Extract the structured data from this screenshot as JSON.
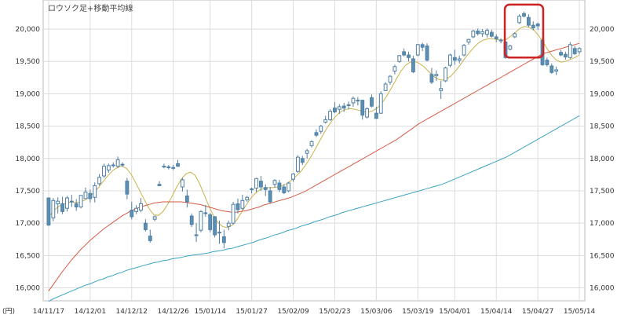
{
  "chart_data": {
    "type": "candlestick",
    "title": "ロウソク足+移動平均線",
    "unit_label": "(円)",
    "ylim": [
      15800,
      20450
    ],
    "y_ticks": [
      16000,
      16500,
      17000,
      17500,
      18000,
      18500,
      19000,
      19500,
      20000
    ],
    "y_tick_labels": [
      "16,000",
      "16,500",
      "17,000",
      "17,500",
      "18,000",
      "18,500",
      "19,000",
      "19,500",
      "20,000"
    ],
    "x_tick_labels": [
      "14/11/17",
      "14/12/01",
      "14/12/12",
      "14/12/26",
      "15/01/14",
      "15/01/27",
      "15/02/09",
      "15/02/23",
      "15/03/06",
      "15/03/19",
      "15/04/01",
      "15/04/14",
      "15/04/27",
      "15/05/14"
    ],
    "grid": true,
    "colors": {
      "up_candle": "#ffffff",
      "down_candle": "#5b8fb3",
      "candle_outline": "#4f7fa3",
      "ma_short": "#c9b24a",
      "ma_medium": "#d45a45",
      "ma_long": "#3aa3c2",
      "highlight_box": "#cc2222",
      "grid": "#dcdcdc"
    },
    "series": [
      {
        "name": "candles",
        "values": [
          [
            17390,
            17390,
            16960,
            16970
          ],
          [
            17080,
            17390,
            17030,
            17350
          ],
          [
            17300,
            17400,
            17150,
            17340
          ],
          [
            17300,
            17410,
            17140,
            17180
          ],
          [
            17230,
            17420,
            17180,
            17390
          ],
          [
            17330,
            17440,
            17250,
            17340
          ],
          [
            17300,
            17370,
            17190,
            17250
          ],
          [
            17250,
            17430,
            17230,
            17430
          ],
          [
            17380,
            17550,
            17380,
            17480
          ],
          [
            17460,
            17520,
            17320,
            17380
          ],
          [
            17400,
            17630,
            17320,
            17580
          ],
          [
            17610,
            17760,
            17580,
            17710
          ],
          [
            17730,
            17920,
            17700,
            17880
          ],
          [
            17820,
            17920,
            17780,
            17890
          ],
          [
            17900,
            17940,
            17860,
            17890
          ],
          [
            17880,
            18030,
            17850,
            17980
          ],
          [
            17910,
            17940,
            17870,
            17900
          ],
          [
            17650,
            17700,
            17370,
            17450
          ],
          [
            17200,
            17330,
            17060,
            17100
          ],
          [
            17180,
            17280,
            17140,
            17230
          ],
          [
            17200,
            17390,
            17170,
            17300
          ],
          [
            17000,
            17060,
            16870,
            16900
          ],
          [
            16800,
            16900,
            16700,
            16730
          ],
          [
            17060,
            17120,
            17030,
            17100
          ],
          [
            17600,
            17650,
            17570,
            17580
          ],
          [
            17880,
            17920,
            17850,
            17880
          ],
          [
            17870,
            17900,
            17830,
            17870
          ],
          [
            17860,
            17900,
            17820,
            17850
          ],
          [
            17920,
            17980,
            17870,
            17880
          ],
          [
            17560,
            17700,
            17490,
            17670
          ],
          [
            17420,
            17520,
            17240,
            17330
          ],
          [
            17110,
            17150,
            16940,
            16980
          ],
          [
            16820,
            17000,
            16710,
            16820
          ],
          [
            16890,
            17200,
            16860,
            17180
          ],
          [
            17160,
            17280,
            17100,
            17150
          ],
          [
            17130,
            17160,
            16860,
            16900
          ],
          [
            17100,
            17110,
            16780,
            16820
          ],
          [
            16860,
            17040,
            16680,
            16850
          ],
          [
            16790,
            16900,
            16610,
            16700
          ],
          [
            16950,
            17040,
            16890,
            17000
          ],
          [
            17000,
            17330,
            16980,
            17290
          ],
          [
            17300,
            17380,
            17150,
            17210
          ],
          [
            17230,
            17440,
            17200,
            17350
          ],
          [
            17360,
            17420,
            17330,
            17400
          ],
          [
            17520,
            17550,
            17460,
            17530
          ],
          [
            17540,
            17700,
            17480,
            17690
          ],
          [
            17650,
            17730,
            17500,
            17560
          ],
          [
            17550,
            17600,
            17420,
            17520
          ],
          [
            17500,
            17560,
            17300,
            17330
          ],
          [
            17600,
            17680,
            17550,
            17660
          ],
          [
            17620,
            17670,
            17480,
            17520
          ],
          [
            17560,
            17600,
            17450,
            17470
          ],
          [
            17500,
            17640,
            17480,
            17620
          ],
          [
            17680,
            17770,
            17640,
            17760
          ],
          [
            17800,
            18050,
            17780,
            18020
          ],
          [
            18000,
            18040,
            17900,
            17940
          ],
          [
            18080,
            18150,
            18000,
            18120
          ],
          [
            18200,
            18280,
            18170,
            18260
          ],
          [
            18400,
            18450,
            18330,
            18360
          ],
          [
            18420,
            18520,
            18380,
            18500
          ],
          [
            18560,
            18660,
            18540,
            18600
          ],
          [
            18600,
            18760,
            18580,
            18730
          ],
          [
            18780,
            18870,
            18700,
            18720
          ],
          [
            18760,
            18840,
            18690,
            18800
          ],
          [
            18810,
            18860,
            18720,
            18780
          ],
          [
            18820,
            18880,
            18760,
            18830
          ],
          [
            18860,
            18960,
            18800,
            18930
          ],
          [
            18900,
            18950,
            18820,
            18900
          ],
          [
            18900,
            18910,
            18600,
            18670
          ],
          [
            18640,
            18790,
            18620,
            18770
          ],
          [
            18940,
            18990,
            18790,
            18810
          ],
          [
            18700,
            18800,
            18610,
            18620
          ],
          [
            18700,
            19040,
            18690,
            19000
          ],
          [
            19050,
            19180,
            19040,
            19150
          ],
          [
            19180,
            19290,
            19140,
            19270
          ],
          [
            19350,
            19450,
            19300,
            19420
          ],
          [
            19500,
            19600,
            19480,
            19590
          ],
          [
            19650,
            19700,
            19580,
            19600
          ],
          [
            19600,
            19650,
            19500,
            19560
          ],
          [
            19540,
            19590,
            19320,
            19340
          ],
          [
            19600,
            19770,
            19580,
            19760
          ],
          [
            19760,
            19790,
            19660,
            19720
          ],
          [
            19740,
            19780,
            19500,
            19520
          ],
          [
            19300,
            19400,
            19150,
            19180
          ],
          [
            19280,
            19360,
            19200,
            19300
          ],
          [
            19050,
            19200,
            18920,
            19080
          ],
          [
            19200,
            19420,
            19180,
            19400
          ],
          [
            19440,
            19620,
            19410,
            19600
          ],
          [
            19560,
            19680,
            19450,
            19520
          ],
          [
            19520,
            19590,
            19470,
            19540
          ],
          [
            19600,
            19770,
            19580,
            19750
          ],
          [
            19800,
            19850,
            19760,
            19840
          ],
          [
            19880,
            19990,
            19860,
            19970
          ],
          [
            19970,
            20010,
            19900,
            19930
          ],
          [
            19930,
            20000,
            19880,
            19960
          ],
          [
            19920,
            20010,
            19870,
            19980
          ],
          [
            19950,
            19990,
            19870,
            19890
          ],
          [
            19880,
            19920,
            19800,
            19850
          ],
          [
            19820,
            19860,
            19780,
            19830
          ],
          [
            19800,
            19820,
            19540,
            19560
          ],
          [
            19690,
            19760,
            19670,
            19740
          ],
          [
            19880,
            19950,
            19860,
            19930
          ],
          [
            20100,
            20230,
            20080,
            20200
          ],
          [
            20240,
            20270,
            20180,
            20200
          ],
          [
            20180,
            20230,
            20030,
            20060
          ],
          [
            20060,
            20120,
            19980,
            20020
          ],
          [
            20080,
            20100,
            19990,
            20050
          ],
          [
            19830,
            19870,
            19430,
            19450
          ],
          [
            19520,
            19560,
            19420,
            19450
          ],
          [
            19430,
            19470,
            19310,
            19330
          ],
          [
            19350,
            19420,
            19290,
            19370
          ],
          [
            19640,
            19680,
            19580,
            19600
          ],
          [
            19610,
            19650,
            19530,
            19570
          ],
          [
            19560,
            19800,
            19540,
            19760
          ],
          [
            19700,
            19740,
            19600,
            19620
          ],
          [
            19650,
            19720,
            19610,
            19700
          ]
        ]
      },
      {
        "name": "ma_short",
        "values": [
          17100,
          17180,
          17250,
          17290,
          17310,
          17330,
          17320,
          17330,
          17360,
          17410,
          17480,
          17560,
          17650,
          17740,
          17810,
          17860,
          17880,
          17850,
          17760,
          17630,
          17490,
          17350,
          17220,
          17130,
          17120,
          17180,
          17290,
          17420,
          17560,
          17680,
          17760,
          17790,
          17740,
          17610,
          17440,
          17270,
          17120,
          17010,
          16950,
          16930,
          16960,
          17040,
          17150,
          17260,
          17370,
          17450,
          17510,
          17540,
          17550,
          17550,
          17560,
          17580,
          17610,
          17660,
          17720,
          17790,
          17880,
          17990,
          18110,
          18240,
          18370,
          18490,
          18590,
          18670,
          18730,
          18760,
          18770,
          18760,
          18740,
          18720,
          18720,
          18740,
          18790,
          18870,
          18980,
          19100,
          19230,
          19350,
          19440,
          19490,
          19500,
          19470,
          19420,
          19350,
          19280,
          19230,
          19210,
          19230,
          19280,
          19360,
          19450,
          19550,
          19640,
          19720,
          19790,
          19830,
          19850,
          19850,
          19840,
          19830,
          19840,
          19890,
          19950,
          20010,
          20040,
          20030,
          19990,
          19910,
          19810,
          19690,
          19590,
          19520,
          19490,
          19500,
          19530,
          19560,
          19600
        ]
      },
      {
        "name": "ma_medium",
        "values": [
          15950,
          16050,
          16150,
          16250,
          16340,
          16430,
          16510,
          16590,
          16660,
          16730,
          16790,
          16850,
          16910,
          16960,
          17010,
          17060,
          17110,
          17150,
          17190,
          17220,
          17250,
          17270,
          17290,
          17310,
          17320,
          17330,
          17330,
          17330,
          17330,
          17330,
          17320,
          17310,
          17300,
          17290,
          17270,
          17250,
          17230,
          17210,
          17190,
          17180,
          17170,
          17170,
          17180,
          17190,
          17210,
          17230,
          17250,
          17280,
          17300,
          17320,
          17340,
          17360,
          17380,
          17400,
          17430,
          17460,
          17490,
          17530,
          17570,
          17610,
          17650,
          17690,
          17730,
          17770,
          17810,
          17850,
          17890,
          17930,
          17970,
          18010,
          18050,
          18090,
          18130,
          18170,
          18210,
          18250,
          18290,
          18340,
          18390,
          18440,
          18490,
          18540,
          18580,
          18620,
          18660,
          18700,
          18740,
          18780,
          18820,
          18860,
          18900,
          18940,
          18980,
          19020,
          19060,
          19100,
          19140,
          19180,
          19220,
          19260,
          19300,
          19340,
          19380,
          19420,
          19460,
          19500,
          19540,
          19580,
          19620,
          19640,
          19660,
          19680,
          19700,
          19720,
          19740,
          19760,
          19780
        ]
      },
      {
        "name": "ma_long",
        "values": [
          15790,
          15830,
          15860,
          15890,
          15920,
          15950,
          15980,
          16010,
          16040,
          16060,
          16090,
          16120,
          16140,
          16170,
          16190,
          16220,
          16240,
          16270,
          16290,
          16310,
          16330,
          16350,
          16370,
          16390,
          16400,
          16420,
          16430,
          16450,
          16460,
          16470,
          16490,
          16500,
          16510,
          16520,
          16530,
          16540,
          16560,
          16570,
          16580,
          16600,
          16610,
          16630,
          16650,
          16670,
          16690,
          16710,
          16740,
          16760,
          16780,
          16810,
          16830,
          16850,
          16880,
          16900,
          16920,
          16950,
          16970,
          16990,
          17020,
          17040,
          17060,
          17090,
          17110,
          17130,
          17160,
          17180,
          17200,
          17220,
          17240,
          17260,
          17280,
          17300,
          17320,
          17340,
          17360,
          17380,
          17400,
          17420,
          17440,
          17460,
          17480,
          17500,
          17520,
          17540,
          17560,
          17580,
          17600,
          17630,
          17660,
          17690,
          17720,
          17750,
          17780,
          17810,
          17840,
          17870,
          17900,
          17930,
          17960,
          17990,
          18020,
          18060,
          18100,
          18140,
          18180,
          18220,
          18260,
          18300,
          18340,
          18380,
          18420,
          18460,
          18500,
          18540,
          18580,
          18620,
          18660
        ]
      }
    ]
  }
}
